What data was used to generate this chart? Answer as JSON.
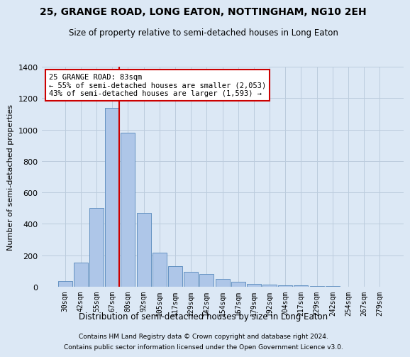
{
  "title": "25, GRANGE ROAD, LONG EATON, NOTTINGHAM, NG10 2EH",
  "subtitle": "Size of property relative to semi-detached houses in Long Eaton",
  "xlabel": "Distribution of semi-detached houses by size in Long Eaton",
  "ylabel": "Number of semi-detached properties",
  "footer1": "Contains HM Land Registry data © Crown copyright and database right 2024.",
  "footer2": "Contains public sector information licensed under the Open Government Licence v3.0.",
  "annotation_title": "25 GRANGE ROAD: 83sqm",
  "annotation_line1": "← 55% of semi-detached houses are smaller (2,053)",
  "annotation_line2": "43% of semi-detached houses are larger (1,593) →",
  "categories": [
    "30sqm",
    "42sqm",
    "55sqm",
    "67sqm",
    "80sqm",
    "92sqm",
    "105sqm",
    "117sqm",
    "129sqm",
    "142sqm",
    "154sqm",
    "167sqm",
    "179sqm",
    "192sqm",
    "204sqm",
    "217sqm",
    "229sqm",
    "242sqm",
    "254sqm",
    "267sqm",
    "279sqm"
  ],
  "values": [
    35,
    155,
    500,
    1140,
    980,
    470,
    215,
    130,
    95,
    80,
    50,
    30,
    20,
    15,
    10,
    7,
    4,
    3,
    2,
    1,
    1
  ],
  "bar_color": "#aec6e8",
  "bar_edge_color": "#5588bb",
  "vline_color": "#cc0000",
  "vline_x": 3.43,
  "grid_color": "#bbccdd",
  "background_color": "#dce8f5",
  "annotation_box_color": "#ffffff",
  "annotation_box_edge": "#cc0000",
  "ylim": [
    0,
    1400
  ],
  "yticks": [
    0,
    200,
    400,
    600,
    800,
    1000,
    1200,
    1400
  ]
}
